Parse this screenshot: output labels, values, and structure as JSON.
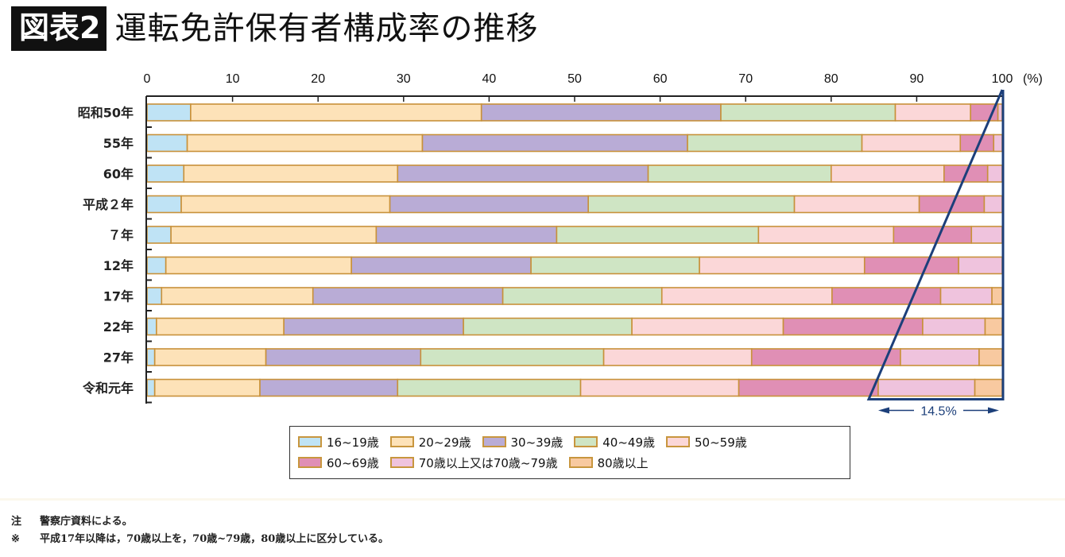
{
  "header": {
    "badge": "図表2",
    "title": "運転免許保有者構成率の推移"
  },
  "chart_data": {
    "type": "bar",
    "orientation": "horizontal",
    "stacked": true,
    "title": "運転免許保有者構成率の推移",
    "xlabel": "(%)",
    "xlim": [
      0,
      100
    ],
    "xticks": [
      0,
      10,
      20,
      30,
      40,
      50,
      60,
      70,
      80,
      90,
      100
    ],
    "categories": [
      "昭和50年",
      "55年",
      "60年",
      "平成２年",
      "７年",
      "12年",
      "17年",
      "22年",
      "27年",
      "令和元年"
    ],
    "series": [
      {
        "name": "16~19歳",
        "color": "#bfe3f5",
        "values": [
          5.1,
          4.7,
          4.3,
          4.0,
          2.8,
          2.2,
          1.7,
          1.1,
          0.9,
          0.9
        ]
      },
      {
        "name": "20~29歳",
        "color": "#fde2b8",
        "values": [
          34.0,
          27.5,
          25.0,
          24.4,
          24.0,
          21.7,
          17.7,
          14.9,
          13.0,
          12.3
        ]
      },
      {
        "name": "30~39歳",
        "color": "#b9acd6",
        "values": [
          28.0,
          31.0,
          29.3,
          23.2,
          21.1,
          21.0,
          22.2,
          21.0,
          18.1,
          16.1
        ]
      },
      {
        "name": "40~49歳",
        "color": "#cfe5c4",
        "values": [
          20.4,
          20.4,
          21.4,
          24.1,
          23.6,
          19.7,
          18.6,
          19.7,
          21.4,
          21.4
        ]
      },
      {
        "name": "50~59歳",
        "color": "#fbd7d8",
        "values": [
          8.8,
          11.5,
          13.2,
          14.6,
          15.8,
          19.3,
          19.9,
          17.7,
          17.3,
          18.5
        ]
      },
      {
        "name": "60~69歳",
        "color": "#e08fb5",
        "values": [
          3.2,
          3.9,
          5.1,
          7.6,
          9.1,
          11.0,
          12.7,
          16.3,
          17.4,
          16.3
        ]
      },
      {
        "name": "70歳以上又は70歳~79歳",
        "color": "#efc3dd",
        "values": [
          0.5,
          1.0,
          1.7,
          2.1,
          3.6,
          5.1,
          6.0,
          7.3,
          9.2,
          11.3
        ]
      },
      {
        "name": "80歳以上",
        "color": "#f8c9a0",
        "values": [
          0,
          0,
          0,
          0,
          0,
          0,
          1.2,
          2.0,
          2.7,
          3.2
        ]
      }
    ],
    "annotation": {
      "text": "14.5%",
      "meaning": "令和元年 70歳以上の構成率"
    },
    "legend_position": "bottom"
  },
  "legend": {
    "items": [
      "16~19歳",
      "20~29歳",
      "30~39歳",
      "40~49歳",
      "50~59歳",
      "60~69歳",
      "70歳以上又は70歳~79歳",
      "80歳以上"
    ]
  },
  "notes": [
    {
      "mark": "注",
      "text": "警察庁資料による。"
    },
    {
      "mark": "※",
      "text": "平成17年以降は，70歳以上を，70歳~79歳，80歳以上に区分している。"
    }
  ]
}
